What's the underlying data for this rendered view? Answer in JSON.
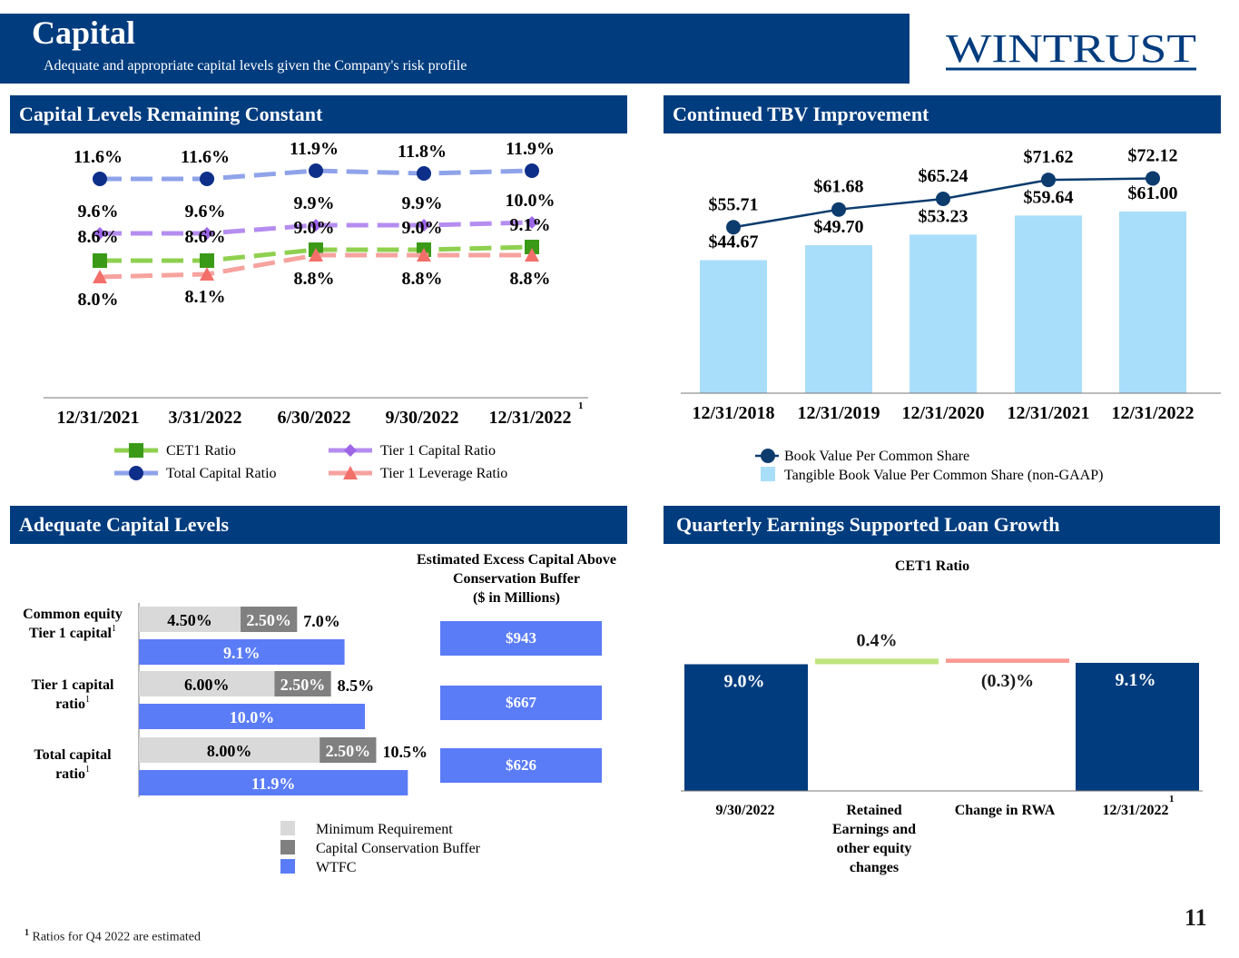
{
  "header": {
    "title": "Capital",
    "subtitle": "Adequate and appropriate capital levels given the Company's risk profile",
    "logo_text": "WINTRUST"
  },
  "colors": {
    "brand_navy": "#003c7e",
    "cet1_green": "#3a9a17",
    "total_capital_navy": "#0d2f8a",
    "tier1_purple": "#9c66e6",
    "leverage_red": "#f36f6a",
    "tbv_bar": "#a9defa",
    "bvps_line": "#0c3c6e",
    "min_req_gray": "#d9d9d9",
    "buffer_gray": "#808080",
    "wtfc_blue": "#5b7cf7",
    "increase_green": "#c0e47f",
    "decrease_red": "#f99a93"
  },
  "sections": {
    "capital_levels": "Capital Levels Remaining Constant",
    "tbv": "Continued TBV Improvement",
    "adequate": "Adequate Capital Levels",
    "quarterly": "Quarterly Earnings Supported Loan Growth"
  },
  "chart_data": [
    {
      "id": "capital_ratios",
      "type": "line",
      "title": "Capital Levels Remaining Constant",
      "categories": [
        "12/31/2021",
        "3/31/2022",
        "6/30/2022",
        "9/30/2022",
        "12/31/2022"
      ],
      "footnote_marker": "1",
      "ylim": [
        7.5,
        12.2
      ],
      "series": [
        {
          "name": "Total Capital Ratio",
          "values": [
            11.6,
            11.6,
            11.9,
            11.8,
            11.9
          ],
          "labels": [
            "11.6%",
            "11.6%",
            "11.9%",
            "11.8%",
            "11.9%"
          ]
        },
        {
          "name": "Tier 1 Capital Ratio",
          "values": [
            9.6,
            9.6,
            9.9,
            9.9,
            10.0
          ],
          "labels": [
            "9.6%",
            "9.6%",
            "9.9%",
            "9.9%",
            "10.0%"
          ]
        },
        {
          "name": "CET1 Ratio",
          "values": [
            8.6,
            8.6,
            9.0,
            9.0,
            9.1
          ],
          "labels": [
            "8.6%",
            "8.6%",
            "9.0%",
            "9.0%",
            "9.1%"
          ]
        },
        {
          "name": "Tier 1 Leverage Ratio",
          "values": [
            8.0,
            8.1,
            8.8,
            8.8,
            8.8
          ],
          "labels": [
            "8.0%",
            "8.1%",
            "8.8%",
            "8.8%",
            "8.8%"
          ]
        }
      ],
      "legend": [
        "CET1 Ratio",
        "Tier 1 Capital Ratio",
        "Total Capital Ratio",
        "Tier 1 Leverage Ratio"
      ]
    },
    {
      "id": "tbv",
      "type": "bar",
      "title": "Continued TBV Improvement",
      "categories": [
        "12/31/2018",
        "12/31/2019",
        "12/31/2020",
        "12/31/2021",
        "12/31/2022"
      ],
      "ylim": [
        0,
        85
      ],
      "series": [
        {
          "name": "Tangible Book Value Per Common Share (non-GAAP)",
          "kind": "bar",
          "values": [
            44.67,
            49.7,
            53.23,
            59.64,
            61.0
          ],
          "labels": [
            "$44.67",
            "$49.70",
            "$53.23",
            "$59.64",
            "$61.00"
          ]
        },
        {
          "name": "Book Value Per Common Share",
          "kind": "line",
          "values": [
            55.71,
            61.68,
            65.24,
            71.62,
            72.12
          ],
          "labels": [
            "$55.71",
            "$61.68",
            "$65.24",
            "$71.62",
            "$72.12"
          ]
        }
      ]
    },
    {
      "id": "adequate",
      "type": "bar",
      "title": "Adequate Capital Levels",
      "orientation": "horizontal",
      "xlim": [
        0,
        12.5
      ],
      "groups": [
        {
          "label": "Common equity Tier 1 capital",
          "marker": "1",
          "minimum": 4.5,
          "minimum_label": "4.50%",
          "buffer": 2.5,
          "buffer_label": "2.50%",
          "total_label": "7.0%",
          "wtfc": 9.1,
          "wtfc_label": "9.1%",
          "excess": 943,
          "excess_label": "$943"
        },
        {
          "label": "Tier 1 capital ratio",
          "marker": "1",
          "minimum": 6.0,
          "minimum_label": "6.00%",
          "buffer": 2.5,
          "buffer_label": "2.50%",
          "total_label": "8.5%",
          "wtfc": 10.0,
          "wtfc_label": "10.0%",
          "excess": 667,
          "excess_label": "$667"
        },
        {
          "label": "Total capital ratio",
          "marker": "1",
          "minimum": 8.0,
          "minimum_label": "8.00%",
          "buffer": 2.5,
          "buffer_label": "2.50%",
          "total_label": "10.5%",
          "wtfc": 11.9,
          "wtfc_label": "11.9%",
          "excess": 626,
          "excess_label": "$626"
        }
      ],
      "excess_title": [
        "Estimated Excess Capital Above",
        "Conservation Buffer",
        "($ in Millions)"
      ],
      "legend": [
        "Minimum Requirement",
        "Capital Conservation Buffer",
        "WTFC"
      ]
    },
    {
      "id": "cet1_walk",
      "type": "bar",
      "subtype": "waterfall",
      "title": "CET1 Ratio",
      "ylim": [
        0,
        10.5
      ],
      "steps": [
        {
          "category": "9/30/2022",
          "kind": "total",
          "value": 9.0,
          "label": "9.0%"
        },
        {
          "category": "Retained Earnings and other equity changes",
          "kind": "increase",
          "value": 0.4,
          "label": "0.4%"
        },
        {
          "category": "Change in RWA",
          "kind": "decrease",
          "value": -0.3,
          "label": "(0.3)%"
        },
        {
          "category": "12/31/2022",
          "kind": "total",
          "value": 9.1,
          "label": "9.1%",
          "marker": "1"
        }
      ],
      "category_lines": [
        [
          "9/30/2022"
        ],
        [
          "Retained",
          "Earnings and",
          "other equity",
          "changes"
        ],
        [
          "Change in RWA"
        ],
        [
          "12/31/2022"
        ]
      ]
    }
  ],
  "footnote": {
    "marker": "1",
    "text": "Ratios for Q4 2022 are estimated"
  },
  "page_number": "11"
}
